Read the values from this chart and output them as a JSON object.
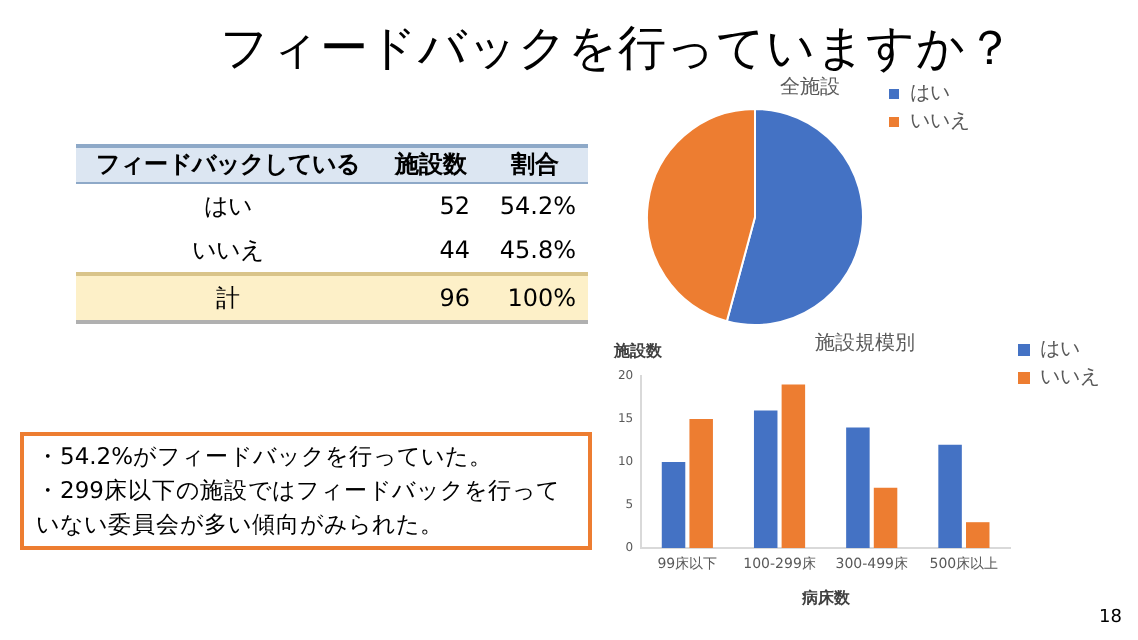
{
  "chart_data": [
    {
      "type": "other",
      "title": "フィードバックを行っていますか？",
      "legend_title": "フィードバックしている",
      "categories": [
        "はい",
        "いいえ",
        "計"
      ],
      "series": [
        {
          "name": "施設数",
          "values": [
            52,
            44,
            96
          ]
        }
      ],
      "data_labels": true,
      "annotations": [
        "割合",
        "54.2%",
        "45.8%",
        "100%",
        "・54.2%がフィードバックを行っていた。",
        "・299床以下の施設ではフィードバックを行っていない委員会が多い傾向がみられた。",
        "18"
      ]
    },
    {
      "type": "pie",
      "title": "全施設",
      "categories": [
        "はい",
        "いいえ"
      ],
      "values": [
        54.2,
        45.8
      ],
      "colors": [
        "#4472c4",
        "#ed7d31"
      ],
      "legend": "top right"
    },
    {
      "type": "bar",
      "title": "施設規模別",
      "xlabel": "病床数",
      "ylabel": "施設数",
      "categories": [
        "99床以下",
        "100-299床",
        "300-499床",
        "500床以上"
      ],
      "series": [
        {
          "name": "はい",
          "color": "#4472c4",
          "values": [
            10,
            16,
            14,
            12
          ]
        },
        {
          "name": "いいえ",
          "color": "#ed7d31",
          "values": [
            15,
            19,
            7,
            3
          ]
        }
      ],
      "ylim": [
        0,
        20
      ],
      "yticks": [
        0,
        5,
        10,
        15,
        20
      ],
      "grid": false,
      "legend": "top right"
    }
  ]
}
